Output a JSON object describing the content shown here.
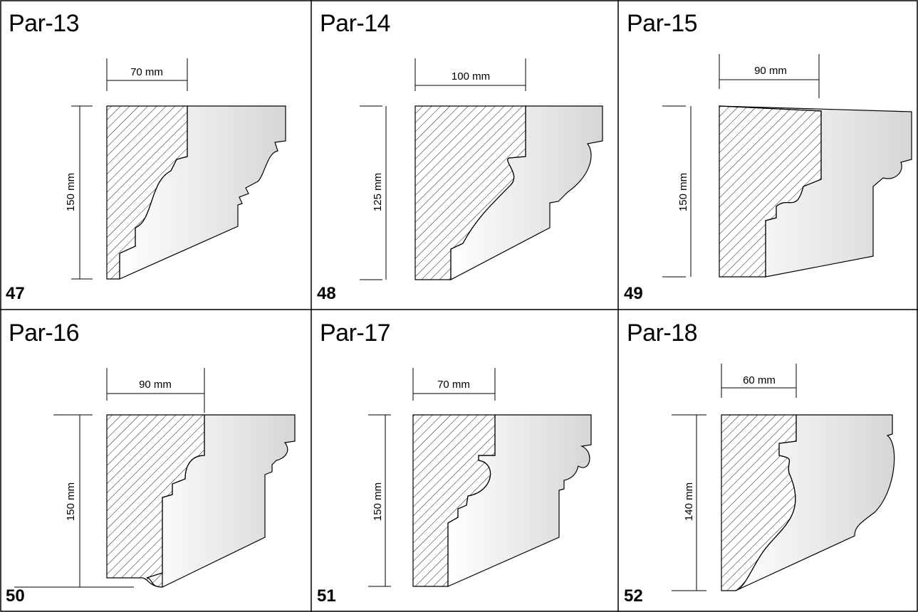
{
  "profiles": [
    {
      "title": "Par-13",
      "number": "47",
      "width": "70 mm",
      "height": "150 mm"
    },
    {
      "title": "Par-14",
      "number": "48",
      "width": "100 mm",
      "height": "125 mm"
    },
    {
      "title": "Par-15",
      "number": "49",
      "width": "90 mm",
      "height": "150 mm"
    },
    {
      "title": "Par-16",
      "number": "50",
      "width": "90 mm",
      "height": "150 mm"
    },
    {
      "title": "Par-17",
      "number": "51",
      "width": "70 mm",
      "height": "150 mm"
    },
    {
      "title": "Par-18",
      "number": "52",
      "width": "60 mm",
      "height": "140 mm"
    }
  ],
  "colors": {
    "grid_line": "#000000",
    "hatch": "#000000",
    "face_light": "#ffffff",
    "face_dark": "#d9d9d9"
  }
}
